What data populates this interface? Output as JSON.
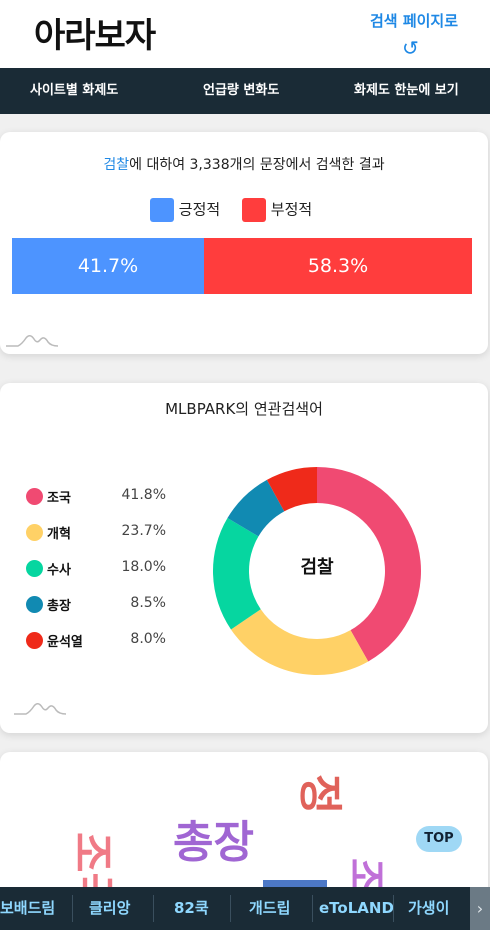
{
  "header": {
    "logo": "아라보자",
    "search_link": "검색 페이지로",
    "refresh_icon": "refresh-icon"
  },
  "nav": {
    "items": [
      "사이트별 화제도",
      "언급량 변화도",
      "화제도 한눈에 보기"
    ]
  },
  "sentiment": {
    "keyword": "검찰",
    "summary": "에 대하여 3,338개의 문장에서 검색한 결과",
    "positive_label": "긍정적",
    "negative_label": "부정적",
    "positive_pct": "41.7%",
    "negative_pct": "58.3%",
    "positive_color": "#4d94ff",
    "negative_color": "#ff3d3d"
  },
  "related": {
    "title": "MLBPARK의 연관검색어",
    "center": "검찰",
    "items": [
      {
        "name": "조국",
        "pct": "41.8%",
        "color": "#f04a72"
      },
      {
        "name": "개혁",
        "pct": "23.7%",
        "color": "#ffd166"
      },
      {
        "name": "수사",
        "pct": "18.0%",
        "color": "#06d6a0"
      },
      {
        "name": "총장",
        "pct": "8.5%",
        "color": "#118ab2"
      },
      {
        "name": "윤석열",
        "pct": "8.0%",
        "color": "#ef2a1a"
      }
    ]
  },
  "chart_data": {
    "type": "pie",
    "categories": [
      "조국",
      "개혁",
      "수사",
      "총장",
      "윤석열"
    ],
    "values": [
      41.8,
      23.7,
      18.0,
      8.5,
      8.0
    ],
    "title": "MLBPARK의 연관검색어"
  },
  "wordcloud": {
    "words": [
      "총장",
      "조국",
      "조",
      "정"
    ]
  },
  "top_button": "TOP",
  "bottom_bar": {
    "items": [
      "보배드림",
      "클리앙",
      "82쿡",
      "개드립",
      "eToLAND",
      "가생이"
    ],
    "arrow": "›"
  }
}
